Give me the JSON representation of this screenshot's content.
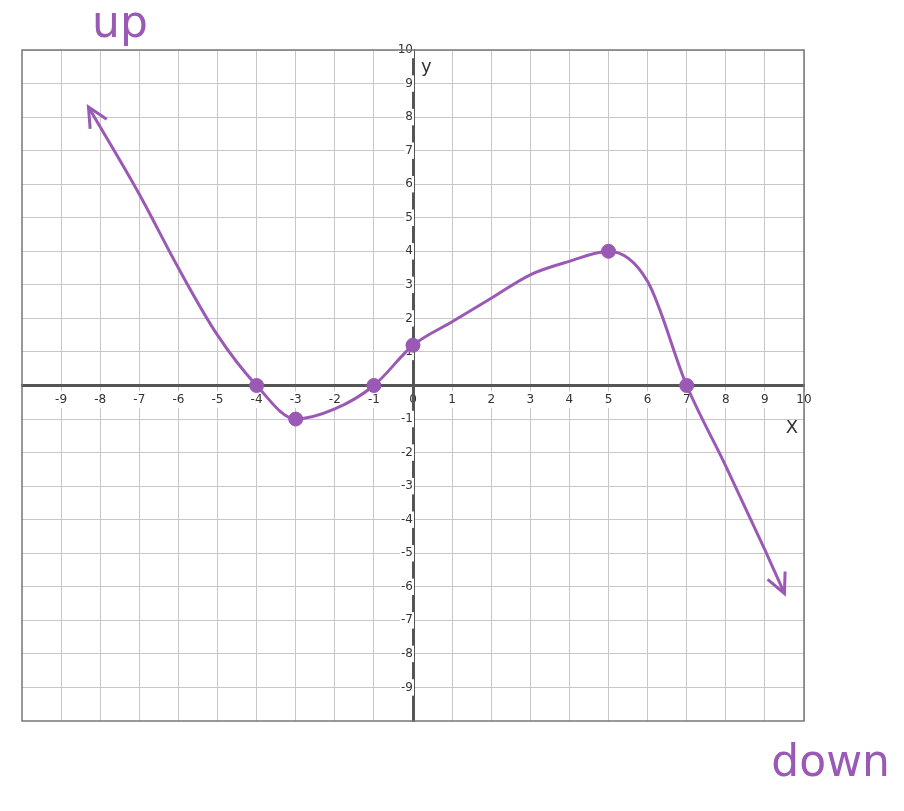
{
  "chart_data": {
    "type": "line",
    "xlabel": "X",
    "ylabel": "y",
    "annotations": [
      "up",
      "down"
    ],
    "xlim": [
      -10,
      10
    ],
    "ylim": [
      -10,
      10
    ],
    "xticks": [
      -9,
      -8,
      -7,
      -6,
      -5,
      -4,
      -3,
      -2,
      -1,
      0,
      1,
      2,
      3,
      4,
      5,
      6,
      7,
      8,
      9,
      10
    ],
    "yticks": [
      -9,
      -8,
      -7,
      -6,
      -5,
      -4,
      -3,
      -2,
      -1,
      1,
      2,
      3,
      4,
      5,
      6,
      7,
      8,
      9,
      10
    ],
    "grid": true,
    "series": [
      {
        "type": "line",
        "color": "#9b59b6",
        "marker": "none",
        "line_style": "solid",
        "x": [
          -8.3,
          -7,
          -6,
          -5,
          -4,
          -3,
          -2,
          -1,
          0,
          1,
          2,
          3,
          4,
          5,
          6,
          7,
          8,
          9,
          9.5
        ],
        "values": [
          8.3,
          5.7,
          3.5,
          1.5,
          0,
          -1,
          -0.7,
          0,
          1.2,
          1.9,
          2.6,
          3.3,
          3.7,
          4,
          3.1,
          0,
          -2.4,
          -4.9,
          -6.2
        ]
      },
      {
        "type": "scatter",
        "color": "#9b59b6",
        "marker": "circle",
        "x": [
          -4,
          -3,
          -1,
          0,
          5,
          7
        ],
        "values": [
          0,
          -1,
          0,
          1.2,
          4,
          0
        ]
      }
    ]
  }
}
